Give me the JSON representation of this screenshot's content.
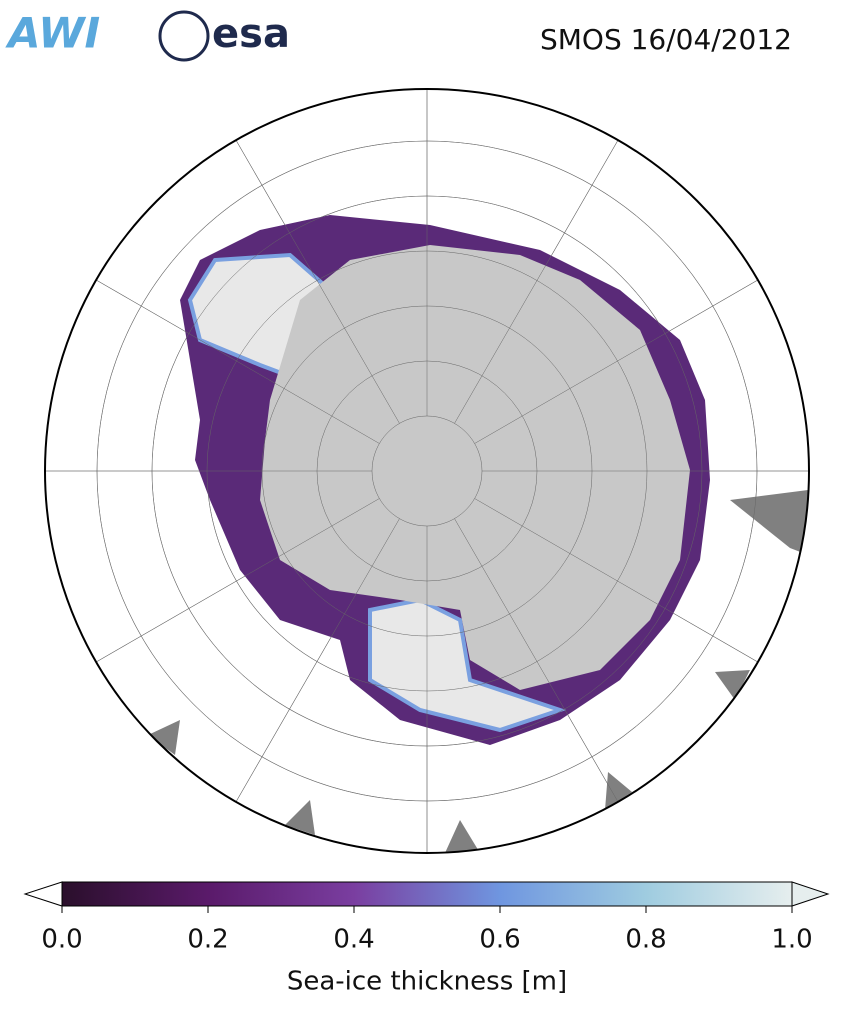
{
  "logos": {
    "left": "AWI",
    "right": "esa"
  },
  "title": "SMOS 16/04/2012",
  "colorbar": {
    "label": "Sea-ice thickness [m]",
    "lim": [
      0,
      1.0
    ],
    "ticks": [
      {
        "value": 0,
        "label": "0.0"
      },
      0.2,
      0.4,
      0.6,
      0.8,
      {
        "value": 1.0,
        "label": "1.0"
      }
    ],
    "colors": [
      "#2a0f2b",
      "#5a1a6a",
      "#7a3ea0",
      "#6f96e0",
      "#9fcce0",
      "#e6eeee"
    ]
  }
}
